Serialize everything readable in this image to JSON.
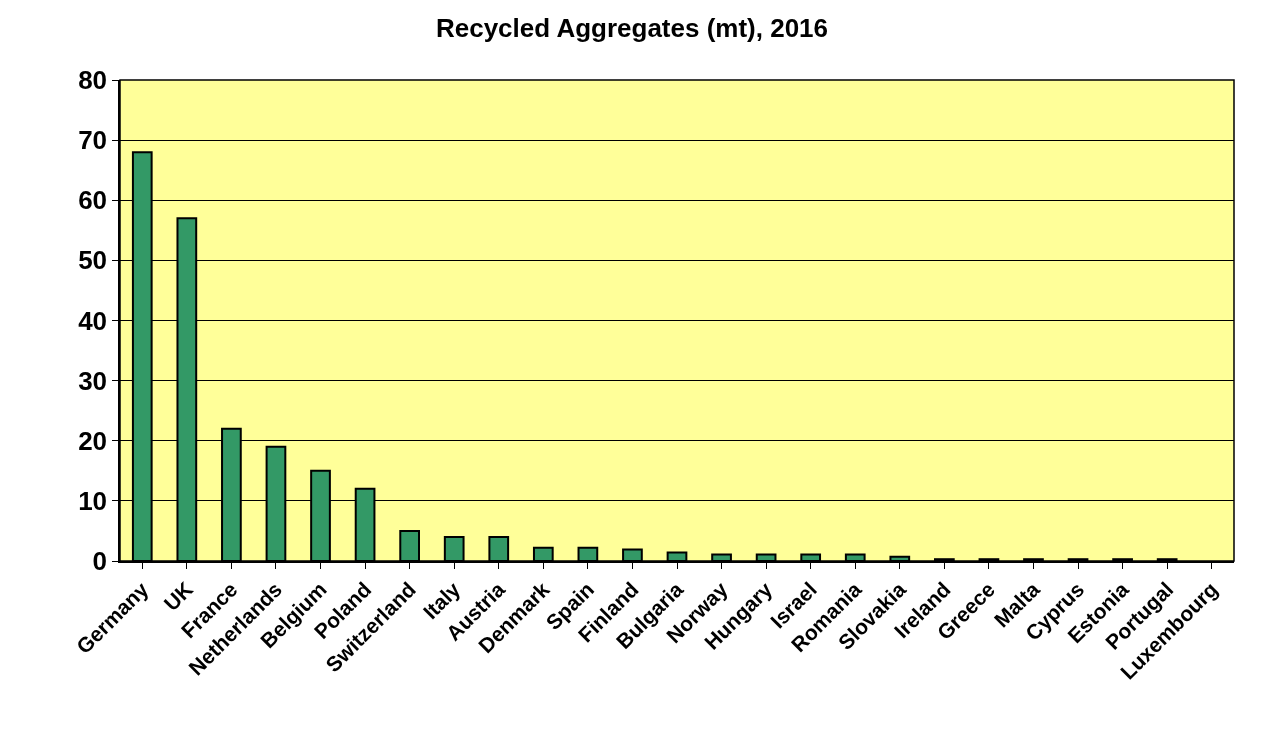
{
  "chart_data": {
    "type": "bar",
    "title": "Recycled Aggregates (mt), 2016",
    "categories": [
      "Germany",
      "UK",
      "France",
      "Netherlands",
      "Belgium",
      "Poland",
      "Switzerland",
      "Italy",
      "Austria",
      "Denmark",
      "Spain",
      "Finland",
      "Bulgaria",
      "Norway",
      "Hungary",
      "Israel",
      "Romania",
      "Slovakia",
      "Ireland",
      "Greece",
      "Malta",
      "Cyprus",
      "Estonia",
      "Portugal",
      "Luxembourg"
    ],
    "values": [
      68,
      57,
      22,
      19,
      15,
      12,
      5,
      4,
      4,
      2.2,
      2.2,
      1.9,
      1.4,
      1.1,
      1.1,
      1.1,
      1.1,
      0.7,
      0.3,
      0.3,
      0.3,
      0.3,
      0.3,
      0.3,
      null
    ],
    "color": "#339966",
    "ylim": [
      0,
      80
    ],
    "yticks": [
      0,
      10,
      20,
      30,
      40,
      50,
      60,
      70,
      80
    ],
    "grid": "y",
    "legend": false
  }
}
